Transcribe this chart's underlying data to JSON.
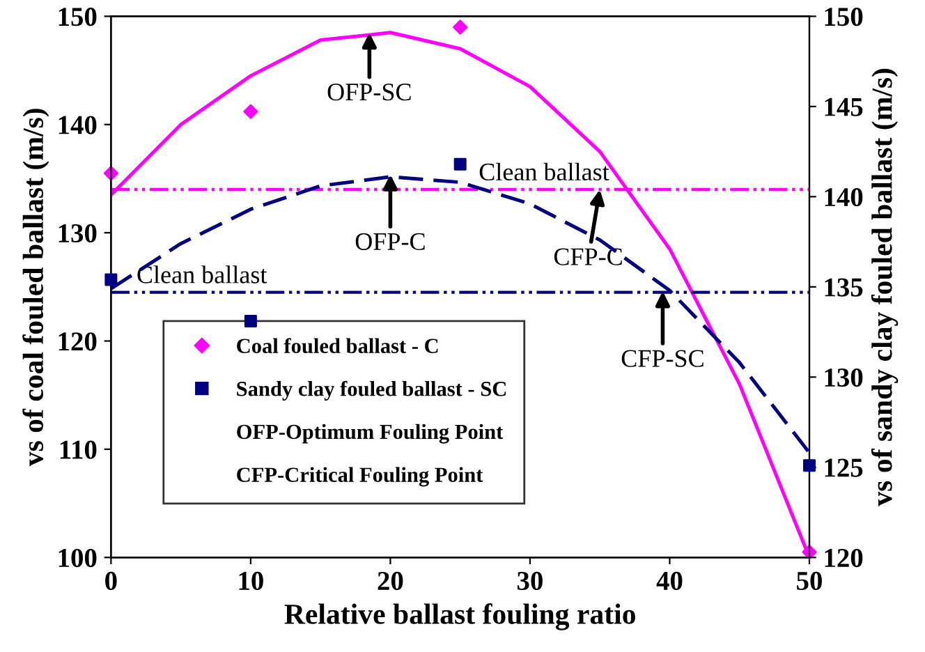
{
  "chart_data": {
    "type": "scatter",
    "xlabel": "Relative ballast fouling ratio",
    "ylabel": "vs of coal fouled ballast (m/s)",
    "y2label": "vs of sandy clay fouled ballast (m/s)",
    "xlim": [
      0,
      50
    ],
    "xticks": [
      0,
      10,
      20,
      30,
      40,
      50
    ],
    "ylim": [
      100,
      150
    ],
    "yticks": [
      100,
      110,
      120,
      130,
      140,
      150
    ],
    "y2lim": [
      120,
      150
    ],
    "y2ticks": [
      120,
      125,
      130,
      135,
      140,
      145,
      150
    ],
    "grid": false,
    "legend": "bottom left",
    "series": [
      {
        "name": "Coal fouled ballast - C",
        "color": "#ff00ff",
        "marker": "diamond",
        "x": [
          0,
          10,
          25,
          50
        ],
        "values": [
          135.5,
          141.2,
          149,
          100.5
        ]
      },
      {
        "name": "Sandy clay fouled ballast - SC",
        "axis": "y2",
        "color": "#000080",
        "marker": "square",
        "x": [
          0,
          10,
          25,
          50
        ],
        "values": [
          135.4,
          133.1,
          141.8,
          125.1
        ]
      },
      {
        "type": "line",
        "color": "#ff00ff",
        "line_style": "solid",
        "x": [
          0,
          5,
          10,
          15,
          20,
          25,
          30,
          35,
          40,
          45,
          50
        ],
        "values": [
          133.5,
          140,
          144.5,
          147.8,
          148.5,
          147,
          143.5,
          137.5,
          128.5,
          116,
          100
        ]
      },
      {
        "type": "line",
        "axis": "y2",
        "color": "#000080",
        "line_style": "dashed",
        "x": [
          0,
          5,
          10,
          15,
          20,
          25,
          30,
          35,
          40,
          45,
          50
        ],
        "values": [
          134.9,
          137.4,
          139.3,
          140.6,
          141.1,
          140.8,
          139.6,
          137.6,
          134.8,
          130.8,
          125.8
        ]
      }
    ],
    "ref_lines": [
      {
        "axis": "y",
        "value": 134,
        "label": "Clean ballast",
        "color": "#ff00ff",
        "line_style": "dashdot"
      },
      {
        "axis": "y2",
        "value": 134.7,
        "label": "Clean ballast",
        "color": "#000080",
        "line_style": "dashdot"
      }
    ],
    "annotations": [
      {
        "text": "OFP-SC",
        "x": 18.5,
        "y": 148.5
      },
      {
        "text": "OFP-C",
        "x": 20,
        "y": 135.4
      },
      {
        "text": "CFP-C",
        "x": 35,
        "y": 134
      },
      {
        "text": "CFP-SC",
        "x": 39.5,
        "y": 124.6
      },
      "OFP-Optimum Fouling Point",
      "CFP-Critical Fouling Point"
    ]
  }
}
